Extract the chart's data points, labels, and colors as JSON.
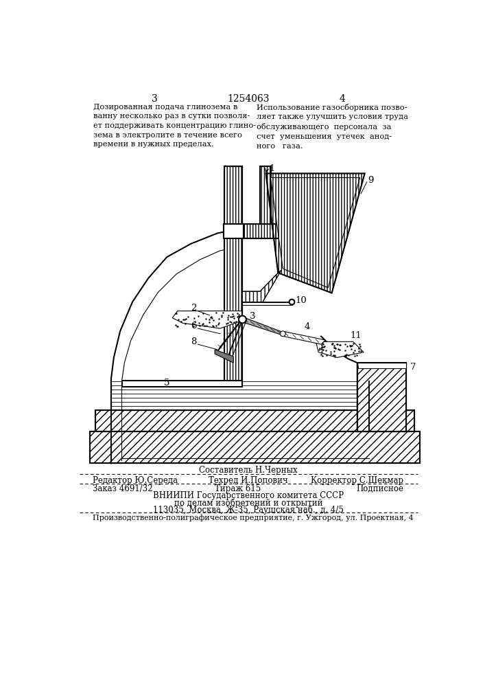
{
  "page_number_left": "3",
  "patent_number": "1254063",
  "page_number_right": "4",
  "text_left": "Дозированная подача глинозема в\nванну несколько раз в сутки позволя-\nет поддерживать концентрацию глино-\nзема в электролите в течение всего\nвремени в нужных пределах.",
  "text_right": "Использование газосборника позво-\nляет также улучшить условия труда\nобслуживающего  персонала  за\nсчет  уменьшения  утечек  анод-\nного   газа.",
  "footer_sestavitel": "Составитель Н.Черных",
  "footer_editor": "Редактор Ю.Середа",
  "footer_tekhred": "Техред И.Попович",
  "footer_korrektor": "Корректор С.Шекмар",
  "footer_zakaz": "Заказ 4691/32",
  "footer_tirazh": "Тираж 615",
  "footer_podpisnoe": "Подписное",
  "footer_vnipi1": "ВНИИПИ Государственного комитета СССР",
  "footer_vnipi2": "по делам изобретений и открытий",
  "footer_vnipi3": "113035, Москва, Ж-35, Раушская наб., д. 4/5",
  "footer_last": "Производственно-полиграфическое предприятие, г. Ужгород, ул. Проектная, 4",
  "bg_color": "#ffffff"
}
